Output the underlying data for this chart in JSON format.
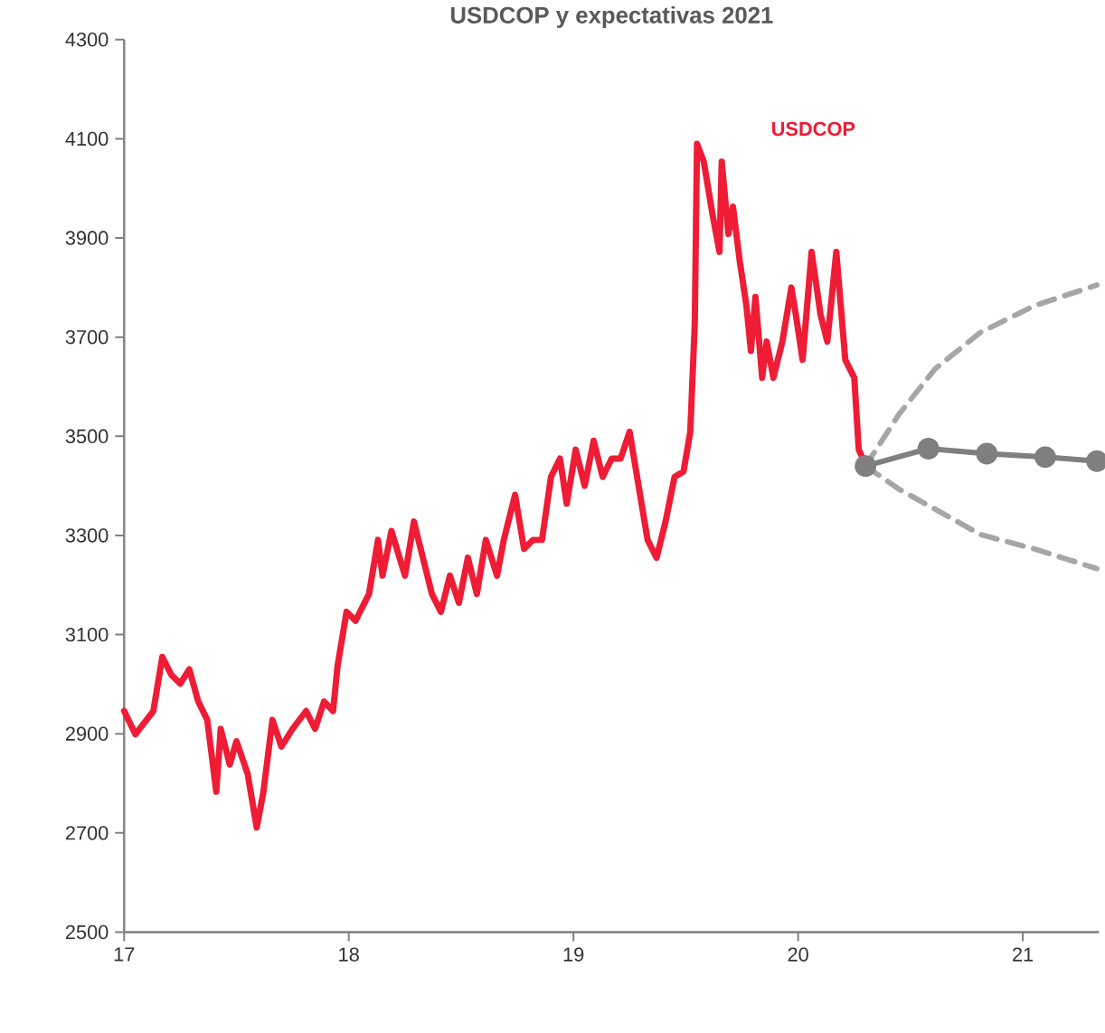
{
  "chart_data": {
    "type": "line",
    "title": "USDCOP y expectativas 2021",
    "xlim": [
      17,
      21.34
    ],
    "xticks": [
      17,
      18,
      19,
      20,
      21
    ],
    "ylim": [
      2500,
      4300
    ],
    "yticks": [
      2500,
      2700,
      2900,
      3100,
      3300,
      3500,
      3700,
      3900,
      4100,
      4300
    ],
    "grid": false,
    "series": [
      {
        "name": "USDCOP",
        "color": "#ee1c35",
        "line_style": "solid",
        "marker": "none",
        "x": [
          17.0,
          17.05,
          17.13,
          17.17,
          17.21,
          17.25,
          17.29,
          17.33,
          17.37,
          17.39,
          17.41,
          17.43,
          17.47,
          17.5,
          17.55,
          17.59,
          17.62,
          17.66,
          17.7,
          17.75,
          17.81,
          17.85,
          17.89,
          17.93,
          17.95,
          17.99,
          18.03,
          18.09,
          18.13,
          18.15,
          18.19,
          18.25,
          18.29,
          18.32,
          18.37,
          18.41,
          18.45,
          18.49,
          18.53,
          18.57,
          18.61,
          18.66,
          18.69,
          18.74,
          18.78,
          18.82,
          18.86,
          18.9,
          18.94,
          18.97,
          19.01,
          19.05,
          19.09,
          19.13,
          19.17,
          19.21,
          19.25,
          19.29,
          19.33,
          19.37,
          19.41,
          19.45,
          19.49,
          19.52,
          19.54,
          19.55,
          19.58,
          19.62,
          19.65,
          19.66,
          19.69,
          19.71,
          19.74,
          19.77,
          19.79,
          19.81,
          19.84,
          19.86,
          19.89,
          19.93,
          19.97,
          19.99,
          20.02,
          20.06,
          20.1,
          20.13,
          20.17,
          20.21,
          20.25,
          20.27,
          20.3
        ],
        "values": [
          2946,
          2899,
          2946,
          3055,
          3019,
          3001,
          3030,
          2965,
          2928,
          2856,
          2783,
          2910,
          2838,
          2885,
          2819,
          2711,
          2783,
          2928,
          2874,
          2910,
          2946,
          2910,
          2965,
          2946,
          3037,
          3146,
          3128,
          3182,
          3291,
          3219,
          3309,
          3219,
          3328,
          3273,
          3182,
          3146,
          3219,
          3164,
          3255,
          3182,
          3291,
          3219,
          3291,
          3382,
          3273,
          3291,
          3291,
          3418,
          3455,
          3364,
          3473,
          3400,
          3491,
          3418,
          3455,
          3455,
          3509,
          3400,
          3291,
          3255,
          3328,
          3418,
          3429,
          3509,
          3727,
          4090,
          4054,
          3945,
          3872,
          4054,
          3908,
          3963,
          3854,
          3763,
          3672,
          3781,
          3618,
          3691,
          3618,
          3691,
          3800,
          3745,
          3654,
          3872,
          3745,
          3691,
          3872,
          3654,
          3618,
          3473,
          3444
        ]
      },
      {
        "color": "#7f7f7f",
        "line_style": "solid",
        "marker": "circle",
        "x": [
          20.3,
          20.58,
          20.84,
          21.1,
          21.33
        ],
        "values": [
          3440,
          3475,
          3465,
          3458,
          3450
        ]
      },
      {
        "color": "#a6a6a6",
        "line_style": "dashed",
        "marker": "none",
        "x": [
          20.3,
          20.45,
          20.61,
          20.81,
          21.05,
          21.33
        ],
        "values": [
          3440,
          3545,
          3636,
          3709,
          3763,
          3805
        ]
      },
      {
        "color": "#a6a6a6",
        "line_style": "dashed",
        "marker": "none",
        "x": [
          20.3,
          20.45,
          20.61,
          20.81,
          21.05,
          21.33
        ],
        "values": [
          3440,
          3393,
          3353,
          3302,
          3273,
          3233
        ]
      }
    ]
  }
}
